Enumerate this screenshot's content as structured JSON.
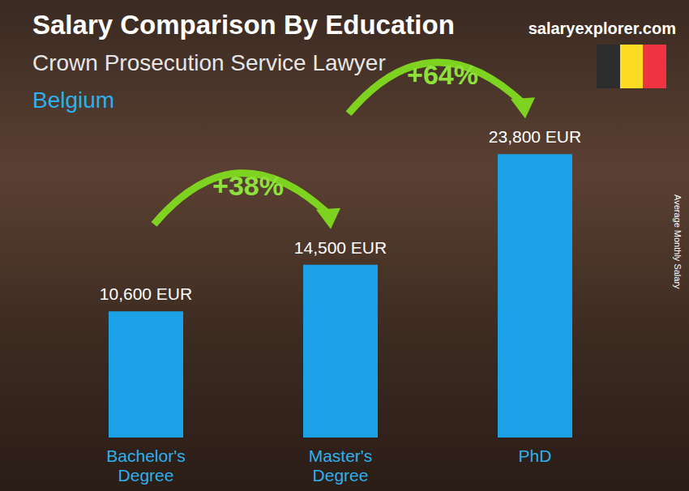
{
  "chart_data": {
    "type": "bar",
    "title": "Salary Comparison By Education",
    "subtitle": "Crown Prosecution Service Lawyer",
    "region": "Belgium",
    "source": "salaryexplorer.com",
    "y_label": "Average Monthly Salary",
    "categories": [
      "Bachelor's Degree",
      "Master's Degree",
      "PhD"
    ],
    "values": [
      10600,
      14500,
      23800
    ],
    "value_labels": [
      "10,600 EUR",
      "14,500 EUR",
      "23,800 EUR"
    ],
    "data_labels": true,
    "annotations": [
      "+38%",
      "+64%"
    ],
    "color": "#1da1e6",
    "ylim": [
      0,
      30000
    ],
    "yticks": [
      0
    ],
    "tick_labels": "x",
    "grid": false
  }
}
